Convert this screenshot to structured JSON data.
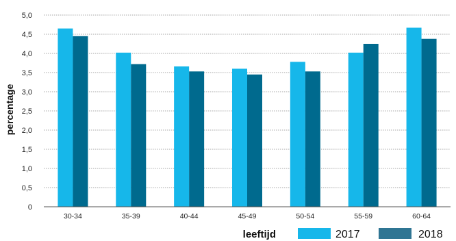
{
  "colors": {
    "series_2017": "#16b7ea",
    "series_2018": "#006a8e",
    "legend_2018": "#2f7593",
    "grid": "#8a8a8a",
    "axis": "#555555"
  },
  "chart_data": {
    "type": "bar",
    "xlabel": "leeftijd",
    "ylabel": "percentage",
    "ylim": [
      0,
      5
    ],
    "grid": true,
    "legend": "bottom-right",
    "categories": [
      "30-34",
      "35-39",
      "40-44",
      "45-49",
      "50-54",
      "55-59",
      "60-64"
    ],
    "yticks": [
      "0",
      "0,5",
      "1,0",
      "1,5",
      "2,0",
      "2,5",
      "3,0",
      "3,5",
      "4,0",
      "4,5",
      "5,0"
    ],
    "series": [
      {
        "name": "2017",
        "values": [
          4.65,
          4.02,
          3.66,
          3.6,
          3.78,
          4.02,
          4.67
        ]
      },
      {
        "name": "2018",
        "values": [
          4.45,
          3.72,
          3.53,
          3.45,
          3.53,
          4.25,
          4.38
        ]
      }
    ]
  }
}
